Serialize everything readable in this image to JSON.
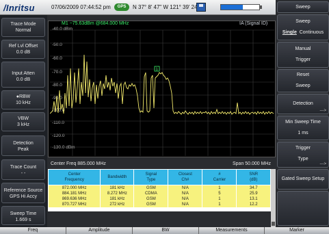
{
  "header": {
    "brand": "/Inritsu",
    "datetime": "07/06/2009 07:44:52 pm",
    "gps_label": "GPS",
    "coords": "N 37° 8' 47\" W 121° 39' 24\""
  },
  "left_panel": [
    {
      "line1": "Trace Mode",
      "line2": "Normal"
    },
    {
      "line1": "Ref Lvl Offset",
      "line2": "0.0 dB"
    },
    {
      "line1": "Input Atten",
      "line2": "0.0 dB"
    },
    {
      "line1": "●RBW",
      "line2": "10 kHz"
    },
    {
      "line1": "VBW",
      "line2": "3 kHz"
    },
    {
      "line1": "Detection",
      "line2": "Peak"
    },
    {
      "line1": "Trace Count",
      "line2": "- -"
    },
    {
      "line1": "Reference Source",
      "line2": "GPS Hi Accy"
    },
    {
      "line1": "Sweep Time",
      "line2": "1.669 s"
    }
  ],
  "graph": {
    "marker_readout": "M1 −75.63dBm @684.000 MHz",
    "mode_readout": "IA (Signal ID)",
    "y_ticks": [
      "-40.0 dBm",
      "-50.0",
      "-60.0",
      "-70.0",
      "-80.0",
      "-90.0",
      "-100.0",
      "-110.0",
      "-120.0",
      "-130.0 dBm"
    ],
    "center_freq": "Center Freq 885.000 MHz",
    "span": "Span 50.000 MHz",
    "marker_label": "1"
  },
  "table": {
    "headers": [
      [
        "Center",
        "Frequency"
      ],
      [
        "Bandwidth",
        ""
      ],
      [
        "Signal",
        "Type"
      ],
      [
        "Closest",
        "Ch#"
      ],
      [
        "#",
        "Carrier"
      ],
      [
        "SNR",
        "(dB)"
      ]
    ],
    "rows": [
      [
        "872.000 MHz",
        "181 kHz",
        "GSM",
        "N/A",
        "1",
        "34.7"
      ],
      [
        "884.181 MHz",
        "8.272 MHz",
        "CDMA",
        "N/A",
        "5",
        "25.9"
      ],
      [
        "869.636 MHz",
        "181 kHz",
        "GSM",
        "N/A",
        "1",
        "13.1"
      ],
      [
        "870.727 MHz",
        "272 kHz",
        "GSM",
        "N/A",
        "1",
        "12.2"
      ]
    ]
  },
  "right_panel": {
    "title": "Sweep",
    "sweep": {
      "top": "Sweep",
      "single": "Single",
      "continuous": "Continuous"
    },
    "manual_trigger": {
      "top": "Manual",
      "bottom": "Trigger"
    },
    "reset_sweep": {
      "top": "Reset",
      "bottom": "Sweep"
    },
    "detection": "Detection",
    "min_sweep_time": {
      "top": "Min Sweep Time",
      "bottom": "1 ms"
    },
    "trigger_type": {
      "top": "Trigger",
      "bottom": "Type"
    },
    "gated_sweep_setup": "Gated Sweep Setup",
    "submenu_arrow": "--->"
  },
  "bottom_tabs": [
    "Freq",
    "Amplitude",
    "BW",
    "Measurements",
    "Marker"
  ],
  "colors": {
    "trace": "#f2e96b",
    "marker_text": "#3cf06a",
    "table_header": "#33b6e6",
    "table_row": "#f7f27e"
  }
}
